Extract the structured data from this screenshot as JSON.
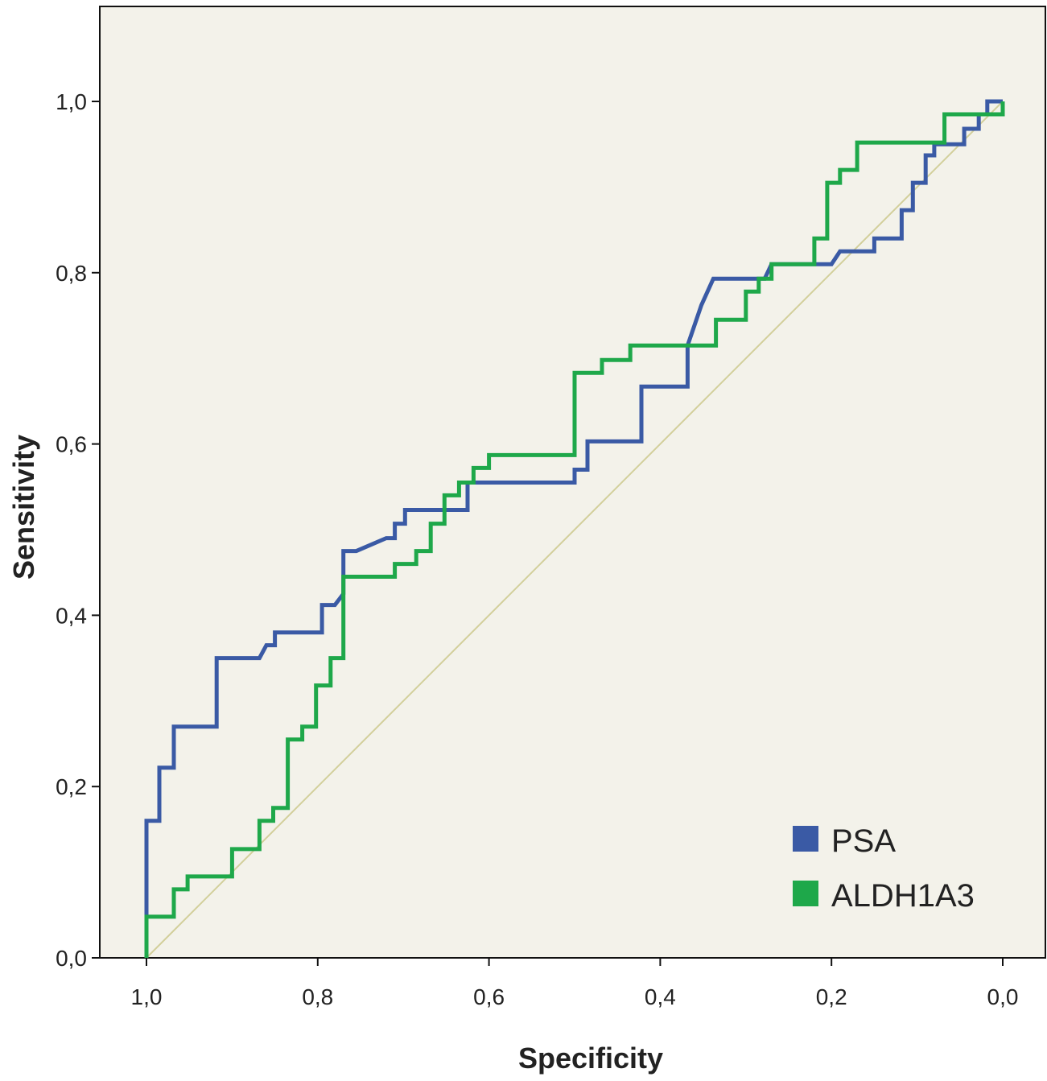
{
  "chart_data": {
    "type": "line",
    "xlabel": "Specificity",
    "ylabel": "Sensitivity",
    "xlim": [
      1.0,
      0.0
    ],
    "ylim": [
      0.0,
      1.0
    ],
    "x_reversed": true,
    "x_ticks": [
      1.0,
      0.8,
      0.6,
      0.4,
      0.2,
      0.0
    ],
    "x_tick_labels": [
      "1,0",
      "0,8",
      "0,6",
      "0,4",
      "0,2",
      "0,0"
    ],
    "y_ticks": [
      0.0,
      0.2,
      0.4,
      0.6,
      0.8,
      1.0
    ],
    "y_tick_labels": [
      "0,0",
      "0,2",
      "0,4",
      "0,6",
      "0,8",
      "1,0"
    ],
    "grid": false,
    "legend_position": "bottom-right",
    "background_color": "#f3f2ea",
    "reference_line": {
      "x": [
        1.0,
        0.0
      ],
      "y": [
        0.0,
        1.0
      ],
      "color": "#d2cf9a"
    },
    "series": [
      {
        "name": "PSA",
        "color": "#3a5aa5",
        "x": [
          1.0,
          1.0,
          0.985,
          0.985,
          0.968,
          0.968,
          0.918,
          0.918,
          0.868,
          0.86,
          0.85,
          0.85,
          0.795,
          0.795,
          0.78,
          0.77,
          0.77,
          0.755,
          0.72,
          0.71,
          0.71,
          0.698,
          0.698,
          0.625,
          0.625,
          0.5,
          0.5,
          0.485,
          0.485,
          0.422,
          0.422,
          0.368,
          0.368,
          0.352,
          0.338,
          0.338,
          0.278,
          0.27,
          0.258,
          0.2,
          0.19,
          0.185,
          0.16,
          0.15,
          0.15,
          0.118,
          0.118,
          0.105,
          0.105,
          0.09,
          0.09,
          0.08,
          0.08,
          0.065,
          0.065,
          0.045,
          0.045,
          0.028,
          0.028,
          0.018,
          0.018,
          0.0
        ],
        "y": [
          0.0,
          0.16,
          0.16,
          0.222,
          0.222,
          0.27,
          0.27,
          0.35,
          0.35,
          0.365,
          0.365,
          0.38,
          0.38,
          0.412,
          0.412,
          0.425,
          0.475,
          0.475,
          0.49,
          0.49,
          0.507,
          0.507,
          0.523,
          0.523,
          0.555,
          0.555,
          0.57,
          0.57,
          0.603,
          0.603,
          0.667,
          0.667,
          0.715,
          0.762,
          0.793,
          0.793,
          0.793,
          0.81,
          0.81,
          0.81,
          0.825,
          0.825,
          0.825,
          0.825,
          0.84,
          0.84,
          0.873,
          0.873,
          0.905,
          0.905,
          0.937,
          0.937,
          0.95,
          0.95,
          0.95,
          0.95,
          0.968,
          0.968,
          0.985,
          0.985,
          1.0,
          1.0
        ]
      },
      {
        "name": "ALDH1A3",
        "color": "#1ea84a",
        "x": [
          1.0,
          1.0,
          0.968,
          0.968,
          0.952,
          0.952,
          0.9,
          0.9,
          0.868,
          0.868,
          0.852,
          0.852,
          0.835,
          0.835,
          0.818,
          0.818,
          0.802,
          0.802,
          0.785,
          0.785,
          0.77,
          0.77,
          0.71,
          0.71,
          0.685,
          0.685,
          0.668,
          0.668,
          0.652,
          0.652,
          0.635,
          0.635,
          0.618,
          0.618,
          0.6,
          0.6,
          0.552,
          0.552,
          0.5,
          0.5,
          0.468,
          0.468,
          0.435,
          0.435,
          0.335,
          0.335,
          0.3,
          0.3,
          0.285,
          0.285,
          0.27,
          0.27,
          0.22,
          0.22,
          0.205,
          0.205,
          0.19,
          0.19,
          0.17,
          0.17,
          0.068,
          0.068,
          0.0,
          0.0
        ],
        "y": [
          0.0,
          0.048,
          0.048,
          0.08,
          0.08,
          0.095,
          0.095,
          0.127,
          0.127,
          0.16,
          0.16,
          0.175,
          0.175,
          0.255,
          0.255,
          0.27,
          0.27,
          0.318,
          0.318,
          0.35,
          0.35,
          0.445,
          0.445,
          0.46,
          0.46,
          0.475,
          0.475,
          0.507,
          0.507,
          0.54,
          0.54,
          0.555,
          0.555,
          0.572,
          0.572,
          0.587,
          0.587,
          0.587,
          0.587,
          0.683,
          0.683,
          0.698,
          0.698,
          0.715,
          0.715,
          0.745,
          0.745,
          0.778,
          0.778,
          0.793,
          0.793,
          0.81,
          0.81,
          0.84,
          0.84,
          0.905,
          0.905,
          0.92,
          0.92,
          0.952,
          0.952,
          0.985,
          0.985,
          1.0
        ]
      }
    ]
  }
}
